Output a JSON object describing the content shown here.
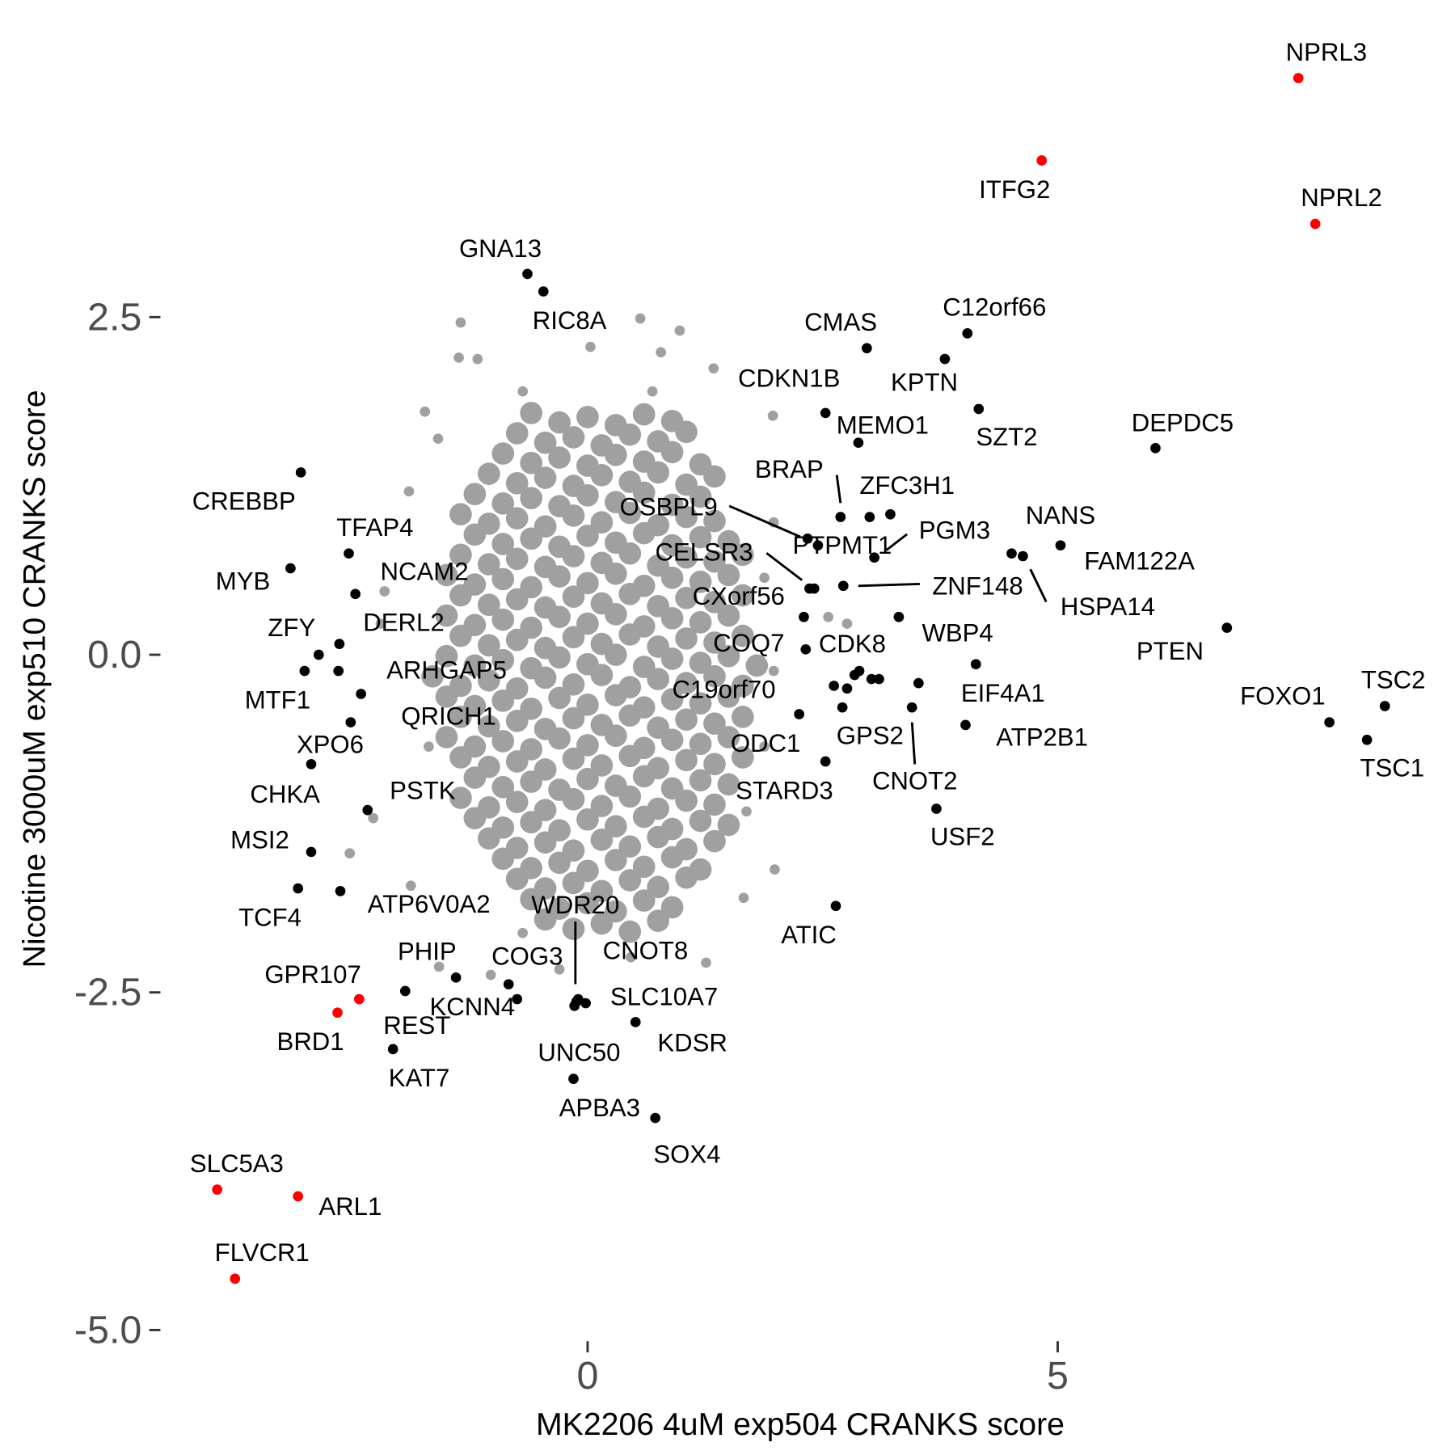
{
  "chart_data": {
    "type": "scatter",
    "xlabel": "MK2206 4uM exp504 CRANKS score",
    "ylabel": "Nicotine 3000uM exp510 CRANKS score",
    "xlim": [
      -4.5,
      9.1
    ],
    "ylim": [
      -5.0,
      4.5
    ],
    "xticks": [
      0,
      5
    ],
    "yticks": [
      2.5,
      {
        "value": 0,
        "label": "0.0"
      },
      -2.5,
      {
        "value": -5,
        "label": "-5.0"
      }
    ],
    "series": [
      {
        "color": "#a0a0a0",
        "x": [
          -0.6,
          -0.3,
          0,
          0.3,
          0.6,
          0.9,
          -0.75,
          -0.45,
          -0.15,
          0.15,
          0.45,
          0.75,
          1.05,
          -0.9,
          -0.6,
          -0.3,
          0,
          0.3,
          0.6,
          0.9,
          1.2,
          -1.05,
          -0.75,
          -0.45,
          -0.15,
          0.15,
          0.45,
          0.75,
          1.05,
          1.35,
          -1.2,
          -0.9,
          -0.6,
          -0.3,
          0,
          0.3,
          0.6,
          0.9,
          1.2,
          -1.35,
          -1.05,
          -0.75,
          -0.45,
          -0.15,
          0.15,
          0.45,
          0.75,
          1.05,
          1.35,
          -1.2,
          -0.9,
          -0.6,
          -0.3,
          0,
          0.3,
          0.6,
          0.9,
          1.2,
          1.5,
          -1.35,
          -1.05,
          -0.75,
          -0.45,
          -0.15,
          0.15,
          0.45,
          0.75,
          1.05,
          1.35,
          1.65,
          -1.5,
          -1.2,
          -0.9,
          -0.6,
          -0.3,
          0,
          0.3,
          0.6,
          0.9,
          1.2,
          1.5,
          -1.35,
          -1.05,
          -0.75,
          -0.45,
          -0.15,
          0.15,
          0.45,
          0.75,
          1.05,
          1.35,
          1.65,
          -1.5,
          -1.2,
          -0.9,
          -0.6,
          -0.3,
          0,
          0.3,
          0.6,
          0.9,
          1.2,
          1.5,
          -1.35,
          -1.05,
          -0.75,
          -0.45,
          -0.15,
          0.15,
          0.45,
          0.75,
          1.05,
          1.35,
          1.65,
          -1.5,
          -1.2,
          -0.9,
          -0.6,
          -0.3,
          0,
          0.3,
          0.6,
          0.9,
          1.2,
          1.5,
          1.8,
          -1.65,
          -1.35,
          -1.05,
          -0.75,
          -0.45,
          -0.15,
          0.15,
          0.45,
          0.75,
          1.05,
          1.35,
          1.65,
          -1.5,
          -1.2,
          -0.9,
          -0.6,
          -0.3,
          0,
          0.3,
          0.6,
          0.9,
          1.2,
          1.5,
          -1.35,
          -1.05,
          -0.75,
          -0.45,
          -0.15,
          0.15,
          0.45,
          0.75,
          1.05,
          1.35,
          1.65,
          -1.5,
          -1.2,
          -0.9,
          -0.6,
          -0.3,
          0,
          0.3,
          0.6,
          0.9,
          1.2,
          1.5,
          -1.35,
          -1.05,
          -0.75,
          -0.45,
          -0.15,
          0.15,
          0.45,
          0.75,
          1.05,
          1.35,
          1.65,
          -1.2,
          -0.9,
          -0.6,
          -0.3,
          0,
          0.3,
          0.6,
          0.9,
          1.2,
          1.5,
          -1.35,
          -1.05,
          -0.75,
          -0.45,
          -0.15,
          0.15,
          0.45,
          0.75,
          1.05,
          1.35,
          -1.2,
          -0.9,
          -0.6,
          -0.3,
          0,
          0.3,
          0.6,
          0.9,
          1.2,
          1.5,
          -1.05,
          -0.75,
          -0.45,
          -0.15,
          0.15,
          0.45,
          0.75,
          1.05,
          1.35,
          -0.9,
          -0.6,
          -0.3,
          0,
          0.3,
          0.6,
          0.9,
          1.2,
          -0.75,
          -0.45,
          -0.15,
          0.15,
          0.45,
          0.75,
          1.05,
          -0.6,
          -0.3,
          0,
          0.3,
          0.6,
          0.9,
          -0.45,
          -0.15,
          0.15,
          0.45,
          0.75
        ],
        "values": [
          1.79,
          1.72,
          1.76,
          1.7,
          1.78,
          1.73,
          1.64,
          1.57,
          1.61,
          1.55,
          1.63,
          1.58,
          1.65,
          1.49,
          1.42,
          1.46,
          1.4,
          1.48,
          1.43,
          1.5,
          1.41,
          1.34,
          1.27,
          1.31,
          1.25,
          1.33,
          1.28,
          1.35,
          1.26,
          1.32,
          1.19,
          1.12,
          1.16,
          1.1,
          1.18,
          1.13,
          1.2,
          1.11,
          1.17,
          1.04,
          0.97,
          1.01,
          0.95,
          1.03,
          0.98,
          1.05,
          0.96,
          1.02,
          0.99,
          0.89,
          0.82,
          0.86,
          0.8,
          0.88,
          0.83,
          0.9,
          0.81,
          0.87,
          0.84,
          0.74,
          0.67,
          0.71,
          0.65,
          0.73,
          0.68,
          0.75,
          0.66,
          0.72,
          0.69,
          0.74,
          0.59,
          0.52,
          0.56,
          0.5,
          0.58,
          0.53,
          0.6,
          0.51,
          0.57,
          0.54,
          0.59,
          0.44,
          0.37,
          0.41,
          0.35,
          0.43,
          0.38,
          0.45,
          0.36,
          0.42,
          0.39,
          0.44,
          0.29,
          0.22,
          0.26,
          0.2,
          0.28,
          0.23,
          0.3,
          0.21,
          0.27,
          0.24,
          0.29,
          0.14,
          0.07,
          0.11,
          0.05,
          0.13,
          0.08,
          0.15,
          0.06,
          0.12,
          0.09,
          0.14,
          -0.01,
          -0.08,
          -0.04,
          -0.1,
          -0.02,
          -0.07,
          0,
          -0.09,
          -0.03,
          -0.06,
          -0.01,
          -0.08,
          -0.16,
          -0.23,
          -0.19,
          -0.25,
          -0.17,
          -0.22,
          -0.15,
          -0.24,
          -0.18,
          -0.21,
          -0.16,
          -0.23,
          -0.31,
          -0.38,
          -0.34,
          -0.4,
          -0.32,
          -0.37,
          -0.3,
          -0.39,
          -0.33,
          -0.36,
          -0.31,
          -0.46,
          -0.53,
          -0.49,
          -0.55,
          -0.47,
          -0.52,
          -0.45,
          -0.54,
          -0.48,
          -0.51,
          -0.46,
          -0.61,
          -0.68,
          -0.64,
          -0.7,
          -0.62,
          -0.67,
          -0.6,
          -0.69,
          -0.63,
          -0.66,
          -0.61,
          -0.76,
          -0.83,
          -0.79,
          -0.85,
          -0.77,
          -0.82,
          -0.75,
          -0.84,
          -0.78,
          -0.81,
          -0.76,
          -0.91,
          -0.98,
          -0.94,
          -1,
          -0.92,
          -0.97,
          -0.9,
          -0.99,
          -0.93,
          -0.96,
          -1.06,
          -1.13,
          -1.09,
          -1.15,
          -1.07,
          -1.12,
          -1.05,
          -1.14,
          -1.08,
          -1.11,
          -1.21,
          -1.28,
          -1.24,
          -1.3,
          -1.22,
          -1.27,
          -1.2,
          -1.29,
          -1.23,
          -1.26,
          -1.36,
          -1.43,
          -1.39,
          -1.45,
          -1.37,
          -1.42,
          -1.35,
          -1.44,
          -1.38,
          -1.51,
          -1.58,
          -1.54,
          -1.6,
          -1.52,
          -1.57,
          -1.5,
          -1.59,
          -1.66,
          -1.73,
          -1.69,
          -1.75,
          -1.67,
          -1.72,
          -1.65,
          -1.81,
          -1.88,
          -1.84,
          -1.9,
          -1.82,
          -1.87,
          -1.96,
          -2.03,
          -1.99,
          -2.05,
          -1.97
        ]
      },
      {
        "color": "#a0a0a0",
        "x": [
          -1.35,
          0.56,
          0.98,
          -1.37,
          -1.17,
          0.03,
          0.78,
          1.34,
          -1.73,
          1.97,
          -1.9,
          1.98,
          -2.16,
          -2.2,
          2.76,
          2.56,
          -2.28,
          -2.53,
          1.99,
          1.66,
          -1.58,
          1.26,
          0.46,
          -1.03,
          -0.3,
          1.88,
          1.98,
          1.88,
          -1.59,
          -0.69,
          0.69,
          -1.88,
          -0.69,
          0.79,
          -1.69,
          1.69
        ],
        "values": [
          2.46,
          2.49,
          2.4,
          2.2,
          2.19,
          2.28,
          2.24,
          2.12,
          1.8,
          1.77,
          1.21,
          0.98,
          0.47,
          0.23,
          0.23,
          0.28,
          -1.21,
          -1.47,
          -1.59,
          -1.8,
          -2.31,
          -2.28,
          -2.24,
          -2.37,
          -2.33,
          -0.68,
          -0.12,
          0.57,
          1.6,
          1.95,
          1.95,
          -1.71,
          -2.06,
          -1.99,
          -0.68,
          -1.16
        ]
      },
      {
        "color": "#000000",
        "x": [
          -0.64,
          -0.47,
          2.97,
          4.04,
          3.8,
          2.53,
          4.16,
          2.88,
          6.04,
          -3.05,
          2.69,
          3.22,
          2.34,
          2.45,
          3.05,
          2.36,
          2.41,
          2.72,
          5.03,
          4.51,
          4.63,
          -2.54,
          -3.16,
          -2.47,
          3.31,
          2.32,
          2.3,
          6.8,
          -2.86,
          -2.64,
          -3.01,
          -2.65,
          4.13,
          2.62,
          3.45,
          3.52,
          8.48,
          7.89,
          8.29,
          4.02,
          -2.41,
          -2.52,
          2.25,
          2.53,
          -2.94,
          -2.34,
          3.71,
          -2.94,
          -3.08,
          -2.63,
          2.64,
          -0.12,
          -0.1,
          -1.4,
          -0.84,
          -1.94,
          -0.75,
          -0.02,
          -2.07,
          0.51,
          -0.14,
          -0.15,
          0.72,
          3.0,
          2.76,
          2.84,
          2.89,
          3.02,
          3.1,
          2.71
        ],
        "values": [
          2.82,
          2.69,
          2.27,
          2.38,
          2.19,
          1.79,
          1.82,
          1.57,
          1.53,
          1.35,
          1.02,
          1.04,
          0.86,
          0.81,
          0.72,
          0.49,
          0.49,
          0.51,
          0.81,
          0.75,
          0.73,
          0.75,
          0.64,
          0.45,
          0.28,
          0.04,
          0.28,
          0.2,
          0,
          0.08,
          -0.12,
          -0.12,
          -0.07,
          -0.23,
          -0.39,
          -0.21,
          -0.38,
          -0.5,
          -0.63,
          -0.52,
          -0.29,
          -0.5,
          -0.44,
          -0.79,
          -0.81,
          -1.15,
          -1.14,
          -1.46,
          -1.73,
          -1.75,
          -1.86,
          -2.57,
          -2.55,
          -2.39,
          -2.44,
          -2.49,
          -2.55,
          -2.58,
          -2.92,
          -2.72,
          -2.6,
          -3.14,
          -3.43,
          1.02,
          -0.25,
          -0.15,
          -0.12,
          -0.18,
          -0.18,
          -0.39
        ],
        "labels": [
          "GNA13",
          "RIC8A",
          "CMAS",
          "C12orf66",
          "KPTN",
          "CDKN1B",
          "SZT2",
          "MEMO1",
          "DEPDC5",
          "CREBBP",
          "BRAP",
          "ZFC3H1",
          "OSBPL9",
          "PTPMT1",
          "PGM3",
          "CELSR3",
          "CXorf56",
          "ZNF148",
          "NANS",
          "FAM122A",
          "HSPA14",
          "TFAP4",
          "MYB",
          "NCAM2",
          "WBP4",
          "CDK8",
          "COQ7",
          "PTEN",
          "ZFY",
          "DERL2",
          "MTF1",
          "ARHGAP5",
          "EIF4A1",
          "C19orf70",
          "GPS2",
          "CNOT2",
          "TSC2",
          "FOXO1",
          "TSC1",
          "ATP2B1",
          "QRICH1",
          "XPO6",
          "ODC1",
          "STARD3",
          "CHKA",
          "PSTK",
          "USF2",
          "MSI2",
          "TCF4",
          "ATP6V0A2",
          "ATIC",
          "WDR20",
          "CNOT8",
          "PHIP",
          "COG3",
          "GPR107",
          "KCNN4",
          "SLC10A7",
          "KAT7",
          "KDSR",
          "UNC50",
          "APBA3",
          "SOX4",
          null,
          null,
          null,
          null,
          null,
          null,
          null
        ]
      },
      {
        "color": "#ff0000",
        "x": [
          7.56,
          4.83,
          7.74,
          -2.43,
          -2.66,
          -3.94,
          -3.08,
          -3.75
        ],
        "values": [
          4.27,
          3.66,
          3.19,
          -2.55,
          -2.65,
          -3.96,
          -4.01,
          -4.62
        ],
        "labels": [
          "NPRL3",
          "ITFG2",
          "NPRL2",
          "REST",
          "BRD1",
          "SLC5A3",
          "ARL1",
          "FLVCR1"
        ]
      }
    ]
  }
}
